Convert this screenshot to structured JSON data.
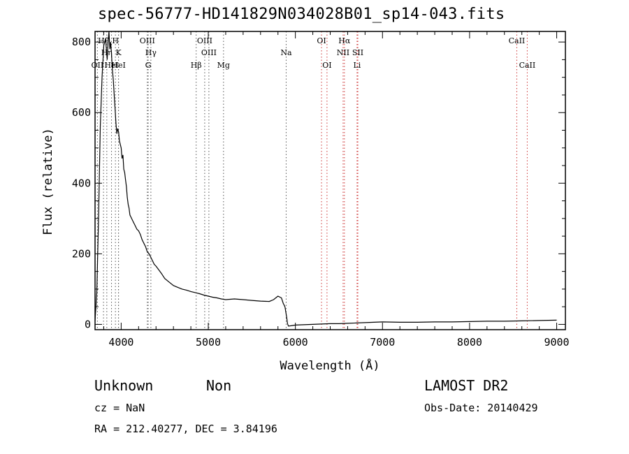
{
  "header": {
    "title": "spec-56777-HD141829N034028B01_sp14-043.fits"
  },
  "info": {
    "object_type": "Unknown",
    "object_class": "Non",
    "survey": "LAMOST DR2",
    "cz": "cz = NaN",
    "obs_date": "Obs-Date: 20140429",
    "ra_dec": "RA = 212.40277, DEC =   3.84196"
  },
  "chart_data": {
    "type": "line",
    "title": "spec-56777-HD141829N034028B01_sp14-043.fits",
    "xlabel": "Wavelength (Å)",
    "ylabel": "Flux (relative)",
    "xlim": [
      3700,
      9100
    ],
    "ylim": [
      -15,
      830
    ],
    "xticks": [
      4000,
      5000,
      6000,
      7000,
      8000,
      9000
    ],
    "yticks": [
      0,
      200,
      400,
      600,
      800
    ],
    "grid": false,
    "series": [
      {
        "color": "#000000",
        "x": [
          3700,
          3720,
          3740,
          3760,
          3780,
          3800,
          3820,
          3840,
          3850,
          3860,
          3870,
          3880,
          3890,
          3900,
          3910,
          3920,
          3930,
          3940,
          3950,
          3960,
          3970,
          3980,
          3990,
          4000,
          4010,
          4020,
          4030,
          4040,
          4050,
          4060,
          4070,
          4080,
          4090,
          4100,
          4120,
          4140,
          4160,
          4180,
          4200,
          4220,
          4240,
          4260,
          4280,
          4300,
          4320,
          4340,
          4360,
          4380,
          4400,
          4430,
          4460,
          4500,
          4550,
          4600,
          4650,
          4700,
          4750,
          4800,
          4850,
          4900,
          4950,
          5000,
          5050,
          5100,
          5150,
          5200,
          5300,
          5400,
          5500,
          5600,
          5700,
          5750,
          5800,
          5840,
          5860,
          5880,
          5900,
          5910,
          5920,
          5950,
          6000,
          6100,
          6200,
          6300,
          6400,
          6500,
          6600,
          6700,
          6800,
          6900,
          7000,
          7200,
          7400,
          7600,
          7800,
          8000,
          8200,
          8400,
          8600,
          8800,
          9000
        ],
        "y": [
          10,
          90,
          300,
          560,
          700,
          790,
          810,
          750,
          800,
          830,
          780,
          800,
          760,
          720,
          690,
          650,
          610,
          570,
          540,
          555,
          545,
          520,
          510,
          500,
          470,
          480,
          440,
          430,
          410,
          390,
          360,
          340,
          330,
          310,
          300,
          290,
          280,
          270,
          265,
          255,
          240,
          230,
          220,
          205,
          200,
          190,
          180,
          170,
          165,
          155,
          145,
          130,
          120,
          110,
          105,
          100,
          97,
          93,
          90,
          87,
          83,
          80,
          77,
          75,
          72,
          70,
          72,
          70,
          68,
          66,
          65,
          70,
          80,
          75,
          60,
          50,
          20,
          2,
          -5,
          -4,
          -2,
          -1,
          0,
          1,
          2,
          2,
          3,
          4,
          5,
          6,
          7,
          6,
          6,
          7,
          7,
          8,
          9,
          9,
          10,
          11,
          12
        ]
      }
    ],
    "lines": [
      {
        "label": "OII",
        "x": 3727,
        "row": 3
      },
      {
        "label": "Hθ",
        "x": 3797,
        "row": 1
      },
      {
        "label": "Hη",
        "x": 3835,
        "row": 2
      },
      {
        "label": "HeI",
        "x": 3889,
        "row": 3
      },
      {
        "label": "H",
        "x": 3934,
        "row": 1
      },
      {
        "label": "K",
        "x": 3969,
        "row": 2
      },
      {
        "label": "HeI",
        "x": 3970,
        "row": 3
      },
      {
        "label": "OIII",
        "x": 4300,
        "row": 1
      },
      {
        "label": "Hγ",
        "x": 4341,
        "row": 2
      },
      {
        "label": "G",
        "x": 4310,
        "row": 3
      },
      {
        "label": "Hβ",
        "x": 4861,
        "row": 3
      },
      {
        "label": "OIII",
        "x": 4959,
        "row": 1
      },
      {
        "label": "OIII",
        "x": 5007,
        "row": 2
      },
      {
        "label": "Mg",
        "x": 5175,
        "row": 3
      },
      {
        "label": "Na",
        "x": 5894,
        "row": 2
      },
      {
        "label": "OI",
        "x": 6300,
        "row": 1
      },
      {
        "label": "OI",
        "x": 6363,
        "row": 3
      },
      {
        "label": "Hα",
        "x": 6563,
        "row": 1
      },
      {
        "label": "NII",
        "x": 6548,
        "row": 2
      },
      {
        "label": "SII",
        "x": 6717,
        "row": 2
      },
      {
        "label": "Li",
        "x": 6708,
        "row": 3
      },
      {
        "label": "CaII",
        "x": 8542,
        "row": 1
      },
      {
        "label": "CaII",
        "x": 8662,
        "row": 3
      }
    ]
  }
}
